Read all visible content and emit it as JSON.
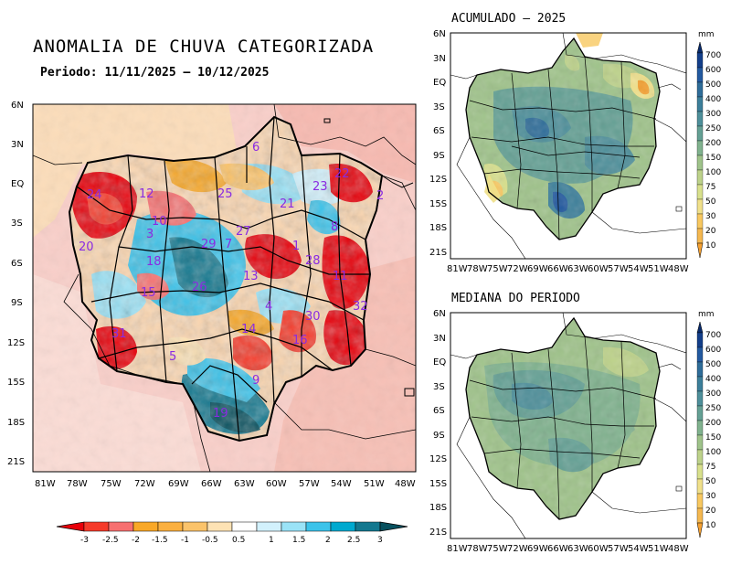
{
  "main_map": {
    "title": "ANOMALIA DE CHUVA CATEGORIZADA",
    "period": "Periodo: 11/11/2025 – 10/12/2025",
    "y_ticks": [
      "6N",
      "3N",
      "EQ",
      "3S",
      "6S",
      "9S",
      "12S",
      "15S",
      "18S",
      "21S"
    ],
    "x_ticks": [
      "81W",
      "78W",
      "75W",
      "72W",
      "69W",
      "66W",
      "63W",
      "60W",
      "57W",
      "54W",
      "51W",
      "48W"
    ],
    "basin_labels": [
      "6",
      "24",
      "12",
      "25",
      "21",
      "23",
      "22",
      "2",
      "10",
      "3",
      "27",
      "7",
      "29",
      "8",
      "20",
      "18",
      "1",
      "28",
      "15",
      "26",
      "13",
      "11",
      "4",
      "32",
      "30",
      "14",
      "31",
      "16",
      "5",
      "9",
      "19"
    ],
    "colorbar": {
      "labels": [
        "-3",
        "-2.5",
        "-2",
        "-1.5",
        "-1",
        "-0.5",
        "0.5",
        "1",
        "1.5",
        "2",
        "2.5",
        "3"
      ],
      "colors": [
        "#e8000a",
        "#f53a2a",
        "#f77070",
        "#f9a828",
        "#fbc36a",
        "#fde2b4",
        "#ffffff",
        "#d2f1fc",
        "#9ae3f7",
        "#3cc3ea",
        "#00a9cf",
        "#13788f",
        "#07505e"
      ]
    }
  },
  "small_map_top": {
    "title": "ACUMULADO – 2025",
    "y_ticks": [
      "6N",
      "3N",
      "EQ",
      "3S",
      "6S",
      "9S",
      "12S",
      "15S",
      "18S",
      "21S"
    ],
    "x_ticks": [
      "81W",
      "78W",
      "75W",
      "72W",
      "69W",
      "66W",
      "63W",
      "60W",
      "57W",
      "54W",
      "51W",
      "48W"
    ],
    "unit": "mm",
    "colorbar": {
      "labels": [
        "700",
        "600",
        "500",
        "400",
        "300",
        "250",
        "200",
        "150",
        "100",
        "75",
        "50",
        "30",
        "20",
        "10"
      ],
      "colors": [
        "#082a6b",
        "#143f8a",
        "#235aa0",
        "#2f6d99",
        "#3c7f9a",
        "#4e8f9a",
        "#64a094",
        "#80b28e",
        "#9fc38a",
        "#bdd28a",
        "#d8e08c",
        "#f0e08a",
        "#f8c860",
        "#f5a030"
      ]
    }
  },
  "small_map_bottom": {
    "title": "MEDIANA DO PERIODO",
    "y_ticks": [
      "6N",
      "3N",
      "EQ",
      "3S",
      "6S",
      "9S",
      "12S",
      "15S",
      "18S",
      "21S"
    ],
    "x_ticks": [
      "81W",
      "78W",
      "75W",
      "72W",
      "69W",
      "66W",
      "63W",
      "60W",
      "57W",
      "54W",
      "51W",
      "48W"
    ],
    "unit": "mm",
    "colorbar": {
      "labels": [
        "700",
        "600",
        "500",
        "400",
        "300",
        "250",
        "200",
        "150",
        "100",
        "75",
        "50",
        "30",
        "20",
        "10"
      ]
    }
  }
}
